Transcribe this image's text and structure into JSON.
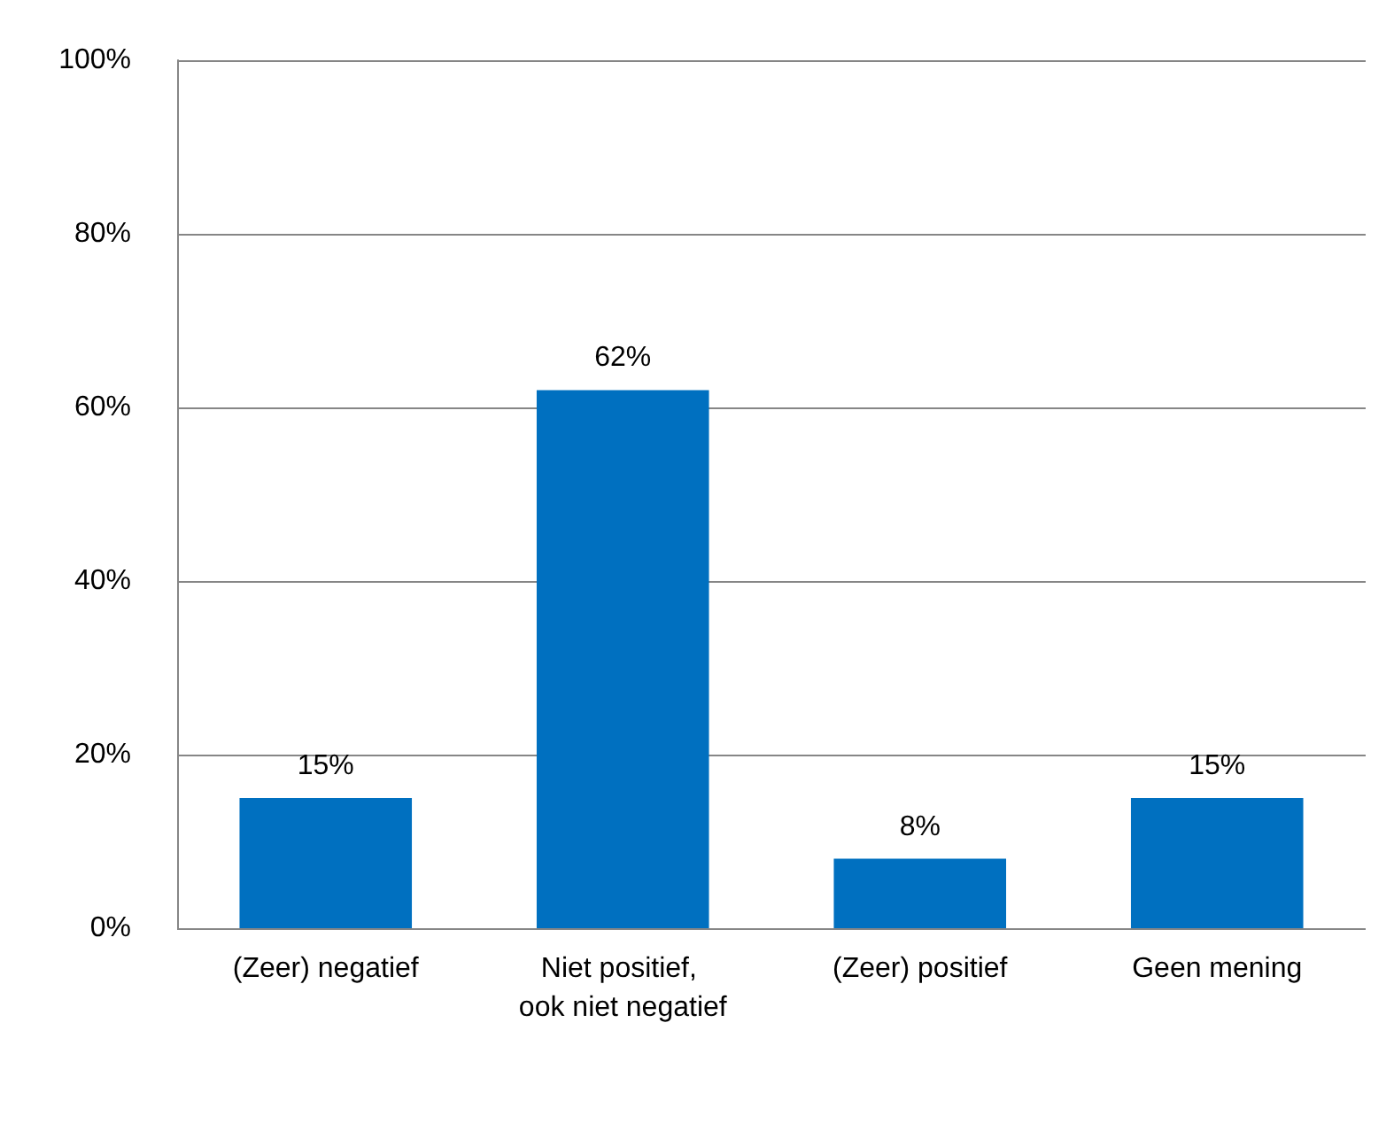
{
  "chart_data": {
    "type": "bar",
    "categories": [
      "(Zeer) negatief",
      "Niet positief, ook niet negatief",
      "(Zeer) positief",
      "Geen mening"
    ],
    "values": [
      15,
      62,
      8,
      15
    ],
    "value_labels": [
      "15%",
      "62%",
      "8%",
      "15%"
    ],
    "color": "#0070c0",
    "ylim": [
      0,
      100
    ],
    "yticks": [
      {
        "value": 0,
        "label": "0%"
      },
      {
        "value": 20,
        "label": "20%"
      },
      {
        "value": 40,
        "label": "40%"
      },
      {
        "value": 60,
        "label": "60%"
      },
      {
        "value": 80,
        "label": "80%"
      },
      {
        "value": 100,
        "label": "100%"
      }
    ],
    "grid": "y"
  }
}
